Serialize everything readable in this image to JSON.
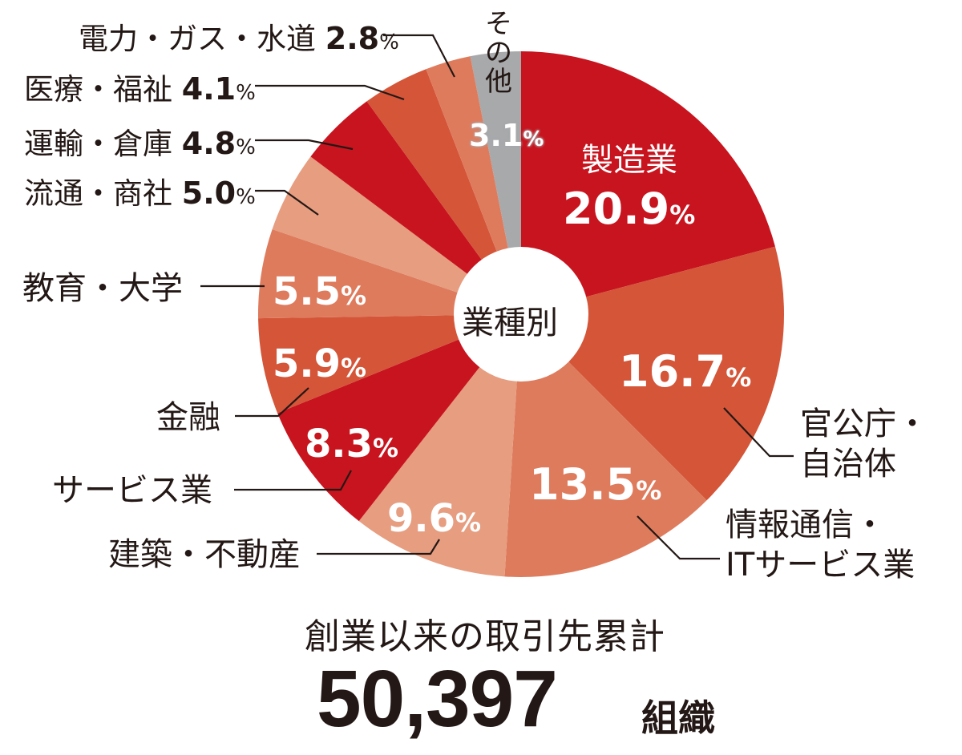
{
  "chart_data": {
    "type": "pie",
    "subtype": "donut",
    "center_label": "業種別",
    "categories": [
      "製造業",
      "官公庁・自治体",
      "情報通信・ITサービス業",
      "建築・不動産",
      "サービス業",
      "金融",
      "教育・大学",
      "流通・商社",
      "運輸・倉庫",
      "医療・福祉",
      "電力・ガス・水道",
      "その他"
    ],
    "values": [
      20.9,
      16.7,
      13.5,
      9.6,
      8.3,
      5.9,
      5.5,
      5.0,
      4.8,
      4.1,
      2.8,
      3.1
    ],
    "unit": "%",
    "colors": [
      "#c8141e",
      "#d45538",
      "#df7b5d",
      "#e69d80",
      "#c8141e",
      "#d45538",
      "#df7b5d",
      "#e69d80",
      "#c8141e",
      "#d45538",
      "#df7b5d",
      "#a7a9ab"
    ],
    "start_angle_deg": 0,
    "direction": "clockwise",
    "title": "創業以来の取引先累計",
    "total": "50,397",
    "total_unit": "組織"
  },
  "labels": {
    "manufacturing": {
      "name": "製造業",
      "value": "20.9",
      "pct": "%"
    },
    "government": {
      "line1": "官公庁・",
      "line2": "自治体",
      "value": "16.7",
      "pct": "%"
    },
    "it": {
      "line1": "情報通信・",
      "line2": "ITサービス業",
      "value": "13.5",
      "pct": "%"
    },
    "construction": {
      "name": "建築・不動産",
      "value": "9.6",
      "pct": "%"
    },
    "service": {
      "name": "サービス業",
      "value": "8.3",
      "pct": "%"
    },
    "finance": {
      "name": "金融",
      "value": "5.9",
      "pct": "%"
    },
    "education": {
      "name": "教育・大学",
      "value": "5.5",
      "pct": "%"
    },
    "distribution": {
      "name": "流通・商社",
      "value": "5.0",
      "pct": "%"
    },
    "transport": {
      "name": "運輸・倉庫",
      "value": "4.8",
      "pct": "%"
    },
    "medical": {
      "name": "医療・福祉",
      "value": "4.1",
      "pct": "%"
    },
    "utilities": {
      "name": "電力・ガス・水道",
      "value": "2.8",
      "pct": "%"
    },
    "other": {
      "name1": "そ",
      "name2": "の",
      "name3": "他",
      "value": "3.1",
      "pct": "%"
    }
  }
}
